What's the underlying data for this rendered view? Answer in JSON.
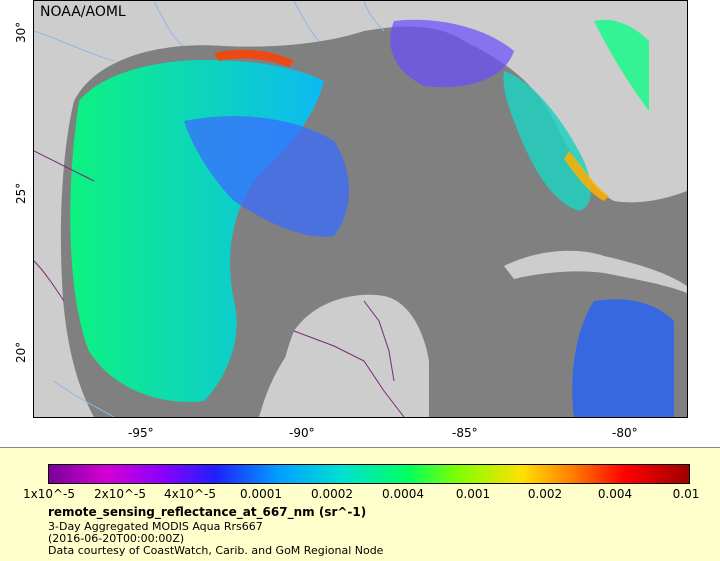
{
  "map": {
    "watermark": "NOAA/AOML",
    "lat_ticks": [
      "30°",
      "25°",
      "20°"
    ],
    "lon_ticks": [
      "-95°",
      "-90°",
      "-85°",
      "-80°"
    ],
    "colors": {
      "land": "#cdcdcd",
      "ocean_nodata": "#808080",
      "rivers": "#8fb5e8",
      "borders": "#7a2a7a"
    }
  },
  "legend": {
    "tick_labels": [
      "1x10^-5",
      "2x10^-5",
      "4x10^-5",
      "0.0001",
      "0.0002",
      "0.0004",
      "0.001",
      "0.002",
      "0.004",
      "0.01"
    ],
    "variable": "remote_sensing_reflectance_at_667_nm (sr^-1)",
    "line1": "3-Day Aggregated MODIS Aqua Rrs667",
    "line2": "(2016-06-20T00:00:00Z)",
    "line3": "Data courtesy of CoastWatch, Carib. and GoM Regional Node",
    "panel_color": "#ffffcc"
  }
}
